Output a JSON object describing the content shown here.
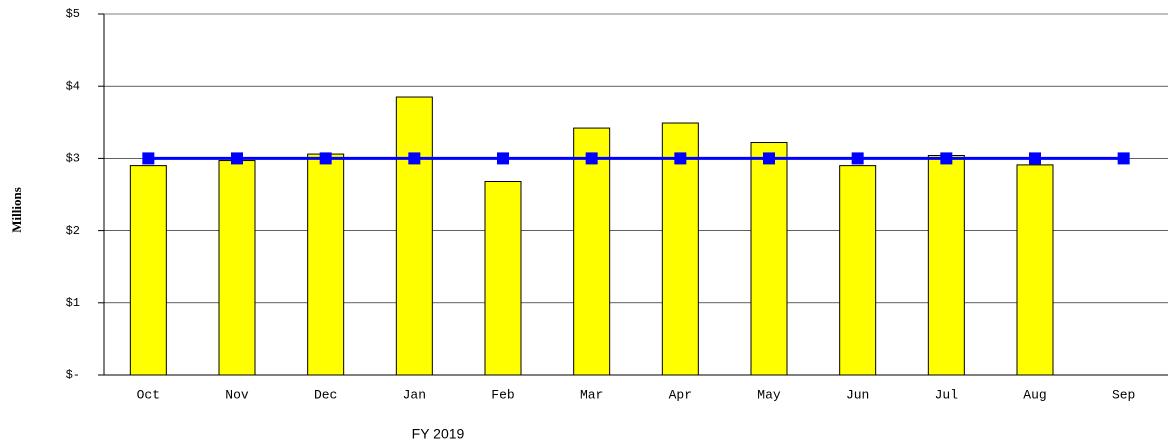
{
  "chart_data": {
    "type": "bar",
    "x_label": "FY 2019",
    "y_label": "Millions",
    "categories": [
      "Oct",
      "Nov",
      "Dec",
      "Jan",
      "Feb",
      "Mar",
      "Apr",
      "May",
      "Jun",
      "Jul",
      "Aug",
      "Sep"
    ],
    "series": [
      {
        "type": "bar",
        "color": "#ffff00",
        "values": [
          2.9,
          2.97,
          3.06,
          3.85,
          2.68,
          3.42,
          3.49,
          3.22,
          2.9,
          3.04,
          2.91,
          null
        ]
      },
      {
        "type": "line",
        "color": "#0000ff",
        "values": [
          3,
          3,
          3,
          3,
          3,
          3,
          3,
          3,
          3,
          3,
          3,
          3
        ]
      }
    ],
    "ylim": [
      0,
      5
    ],
    "yticks": [
      {
        "value": 0,
        "label": "$-"
      },
      {
        "value": 1,
        "label": "$1"
      },
      {
        "value": 2,
        "label": "$2"
      },
      {
        "value": 3,
        "label": "$3"
      },
      {
        "value": 4,
        "label": "$4"
      },
      {
        "value": 5,
        "label": "$5"
      }
    ],
    "grid": true
  }
}
